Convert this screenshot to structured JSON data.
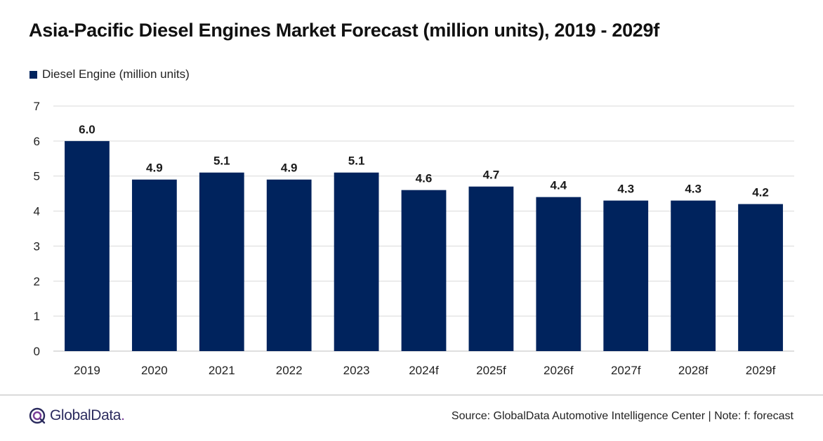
{
  "chart_data": {
    "type": "bar",
    "title": "Asia-Pacific Diesel Engines Market Forecast (million units), 2019 - 2029f",
    "categories": [
      "2019",
      "2020",
      "2021",
      "2022",
      "2023",
      "2024f",
      "2025f",
      "2026f",
      "2027f",
      "2028f",
      "2029f"
    ],
    "series": [
      {
        "name": "Diesel Engine (million units)",
        "values": [
          6.0,
          4.9,
          5.1,
          4.9,
          5.1,
          4.6,
          4.7,
          4.4,
          4.3,
          4.3,
          4.2
        ],
        "labels": [
          "6.0",
          "4.9",
          "5.1",
          "4.9",
          "5.1",
          "4.6",
          "4.7",
          "4.4",
          "4.3",
          "4.3",
          "4.2"
        ]
      }
    ],
    "ylim": [
      0,
      7
    ],
    "yticks": [
      "0",
      "1",
      "2",
      "3",
      "4",
      "5",
      "6",
      "7"
    ],
    "grid": true,
    "legend_position": "top-left",
    "colors": {
      "bar": "#00235d",
      "grid": "#d9d9d9",
      "axis": "#bfbfbf"
    }
  },
  "footer": {
    "brand": "GlobalData",
    "brand_dot": ".",
    "source": "Source: GlobalData Automotive Intelligence Center | Note: f: forecast"
  },
  "icons": {
    "logo": "globaldata-logo-icon"
  }
}
